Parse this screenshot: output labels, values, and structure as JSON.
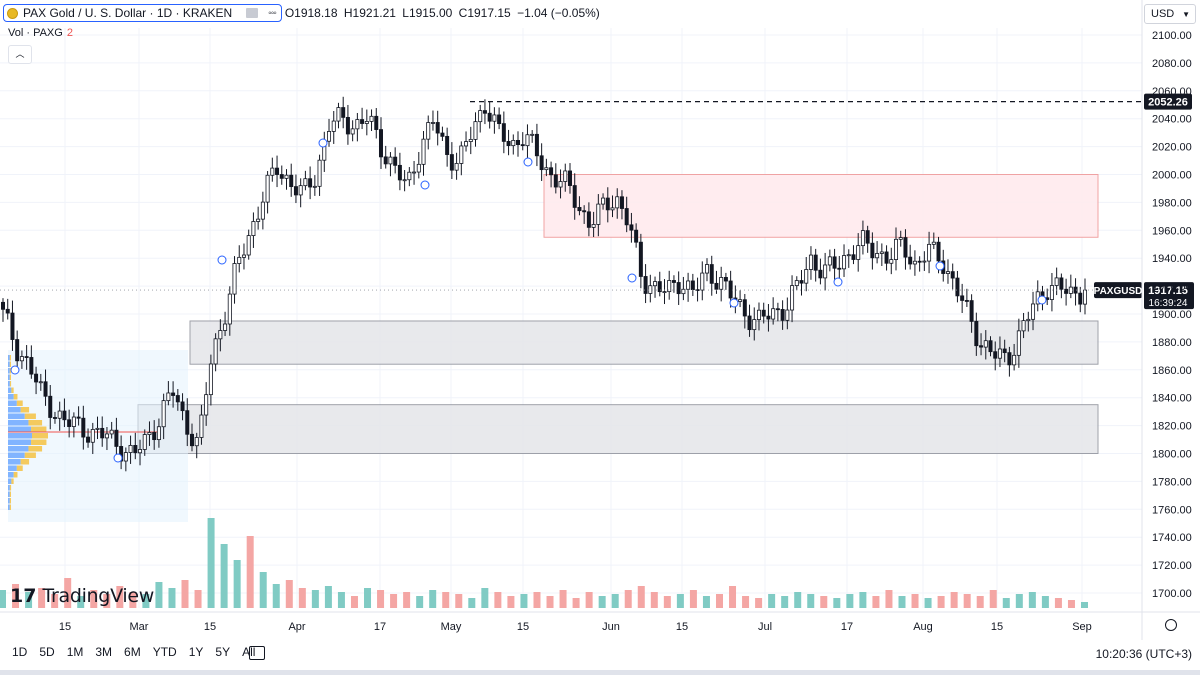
{
  "header": {
    "symbol": "PAX Gold / U. S. Dollar · 1D · KRAKEN",
    "open": "O1918.18",
    "high": "H1921.21",
    "low": "L1915.00",
    "close": "C1917.15",
    "change": "−1.04 (−0.05%)",
    "volume_label": "Vol · PAXG",
    "volume_value": "2"
  },
  "currency": "USD",
  "price_label": {
    "ticker": "PAXGUSD",
    "price": "1917.15",
    "countdown": "16:39:24"
  },
  "level_label": "2052.26",
  "time_ranges": [
    "1D",
    "5D",
    "1M",
    "3M",
    "6M",
    "YTD",
    "1Y",
    "5Y",
    "All"
  ],
  "clock": "10:20:36 (UTC+3)",
  "brand": "TradingView",
  "colors": {
    "up": "#26a69a",
    "down": "#ef5350",
    "candle": "#131722",
    "resistance": "#ffebee",
    "support": "#e6e7eb"
  },
  "chart_data": {
    "type": "candlestick",
    "ylim": [
      1685,
      2105
    ],
    "y_ticks": [
      1700,
      1720,
      1740,
      1760,
      1780,
      1800,
      1820,
      1840,
      1860,
      1880,
      1900,
      1920,
      1940,
      1960,
      1980,
      2000,
      2020,
      2040,
      2060,
      2080,
      2100
    ],
    "x_ticks": [
      "15",
      "Mar",
      "15",
      "Apr",
      "17",
      "May",
      "15",
      "Jun",
      "15",
      "Jul",
      "17",
      "Aug",
      "15",
      "Sep"
    ],
    "zones": [
      {
        "kind": "resistance",
        "from": 1955,
        "to": 2000
      },
      {
        "kind": "support",
        "from": 1864,
        "to": 1895
      },
      {
        "kind": "support",
        "from": 1800,
        "to": 1835
      }
    ],
    "horizontal_level": 2052.26,
    "last_price": 1917.15,
    "close_path": [
      1900,
      1875,
      1865,
      1840,
      1830,
      1822,
      1818,
      1815,
      1812,
      1805,
      1798,
      1810,
      1825,
      1845,
      1822,
      1805,
      1870,
      1900,
      1935,
      1960,
      1985,
      2005,
      1995,
      1985,
      2000,
      2035,
      2040,
      2035,
      2040,
      2020,
      2005,
      1990,
      2020,
      2038,
      2015,
      2010,
      2030,
      2052,
      2030,
      2020,
      2030,
      2012,
      2000,
      1995,
      1980,
      1965,
      1975,
      1985,
      1965,
      1925,
      1920,
      1915,
      1925,
      1915,
      1930,
      1925,
      1910,
      1900,
      1895,
      1900,
      1905,
      1920,
      1940,
      1930,
      1935,
      1945,
      1950,
      1945,
      1940,
      1950,
      1935,
      1945,
      1940,
      1920,
      1900,
      1880,
      1870,
      1868,
      1885,
      1905,
      1920,
      1918,
      1915,
      1917
    ],
    "volume": [
      {
        "up": true,
        "v": 0.9
      },
      {
        "up": false,
        "v": 1.2
      },
      {
        "up": true,
        "v": 0.8
      },
      {
        "up": false,
        "v": 1.0
      },
      {
        "up": false,
        "v": 0.7
      },
      {
        "up": false,
        "v": 1.5
      },
      {
        "up": true,
        "v": 0.6
      },
      {
        "up": false,
        "v": 0.9
      },
      {
        "up": false,
        "v": 0.7
      },
      {
        "up": false,
        "v": 1.1
      },
      {
        "up": false,
        "v": 0.8
      },
      {
        "up": true,
        "v": 0.7
      },
      {
        "up": true,
        "v": 1.3
      },
      {
        "up": true,
        "v": 1.0
      },
      {
        "up": false,
        "v": 1.4
      },
      {
        "up": false,
        "v": 0.9
      },
      {
        "up": true,
        "v": 4.5
      },
      {
        "up": true,
        "v": 3.2
      },
      {
        "up": true,
        "v": 2.4
      },
      {
        "up": false,
        "v": 3.6
      },
      {
        "up": true,
        "v": 1.8
      },
      {
        "up": true,
        "v": 1.2
      },
      {
        "up": false,
        "v": 1.4
      },
      {
        "up": false,
        "v": 1.0
      },
      {
        "up": true,
        "v": 0.9
      },
      {
        "up": true,
        "v": 1.1
      },
      {
        "up": true,
        "v": 0.8
      },
      {
        "up": false,
        "v": 0.6
      },
      {
        "up": true,
        "v": 1.0
      },
      {
        "up": false,
        "v": 0.9
      },
      {
        "up": false,
        "v": 0.7
      },
      {
        "up": false,
        "v": 0.8
      },
      {
        "up": true,
        "v": 0.6
      },
      {
        "up": true,
        "v": 0.9
      },
      {
        "up": false,
        "v": 0.8
      },
      {
        "up": false,
        "v": 0.7
      },
      {
        "up": true,
        "v": 0.5
      },
      {
        "up": true,
        "v": 1.0
      },
      {
        "up": false,
        "v": 0.8
      },
      {
        "up": false,
        "v": 0.6
      },
      {
        "up": true,
        "v": 0.7
      },
      {
        "up": false,
        "v": 0.8
      },
      {
        "up": false,
        "v": 0.6
      },
      {
        "up": false,
        "v": 0.9
      },
      {
        "up": false,
        "v": 0.5
      },
      {
        "up": false,
        "v": 0.8
      },
      {
        "up": true,
        "v": 0.6
      },
      {
        "up": true,
        "v": 0.7
      },
      {
        "up": false,
        "v": 0.9
      },
      {
        "up": false,
        "v": 1.1
      },
      {
        "up": false,
        "v": 0.8
      },
      {
        "up": false,
        "v": 0.6
      },
      {
        "up": true,
        "v": 0.7
      },
      {
        "up": false,
        "v": 0.9
      },
      {
        "up": true,
        "v": 0.6
      },
      {
        "up": false,
        "v": 0.7
      },
      {
        "up": false,
        "v": 1.1
      },
      {
        "up": false,
        "v": 0.6
      },
      {
        "up": false,
        "v": 0.5
      },
      {
        "up": true,
        "v": 0.7
      },
      {
        "up": true,
        "v": 0.6
      },
      {
        "up": true,
        "v": 0.8
      },
      {
        "up": true,
        "v": 0.7
      },
      {
        "up": false,
        "v": 0.6
      },
      {
        "up": true,
        "v": 0.5
      },
      {
        "up": true,
        "v": 0.7
      },
      {
        "up": true,
        "v": 0.8
      },
      {
        "up": false,
        "v": 0.6
      },
      {
        "up": false,
        "v": 0.9
      },
      {
        "up": true,
        "v": 0.6
      },
      {
        "up": false,
        "v": 0.7
      },
      {
        "up": true,
        "v": 0.5
      },
      {
        "up": false,
        "v": 0.6
      },
      {
        "up": false,
        "v": 0.8
      },
      {
        "up": false,
        "v": 0.7
      },
      {
        "up": false,
        "v": 0.6
      },
      {
        "up": false,
        "v": 0.9
      },
      {
        "up": true,
        "v": 0.5
      },
      {
        "up": true,
        "v": 0.7
      },
      {
        "up": true,
        "v": 0.8
      },
      {
        "up": true,
        "v": 0.6
      },
      {
        "up": false,
        "v": 0.5
      },
      {
        "up": false,
        "v": 0.4
      },
      {
        "up": true,
        "v": 0.3
      }
    ]
  }
}
